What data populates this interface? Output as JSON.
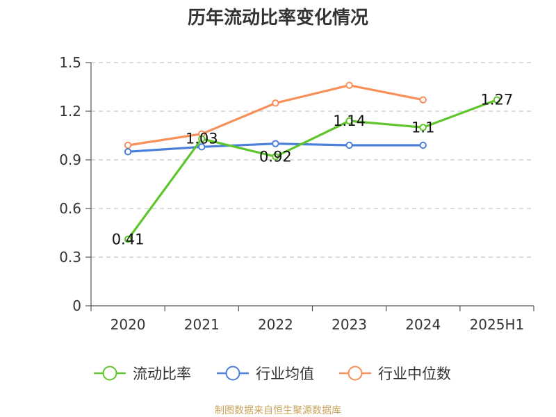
{
  "source_note": "制图数据来自恒生聚源数据库",
  "chart_data": {
    "type": "line",
    "title": "历年流动比率变化情况",
    "categories": [
      "2020",
      "2021",
      "2022",
      "2023",
      "2024",
      "2025H1"
    ],
    "ylim": [
      0,
      1.5
    ],
    "y_ticks": [
      "0",
      "0.3",
      "0.6",
      "0.9",
      "1.2",
      "1.5"
    ],
    "grid": true,
    "legend_position": "bottom",
    "series": [
      {
        "name": "流动比率",
        "color": "#5ec52a",
        "values": [
          0.41,
          1.03,
          0.92,
          1.14,
          1.1,
          1.27
        ],
        "data_labels": [
          "0.41",
          "1.03",
          "0.92",
          "1.14",
          "1.1",
          "1.27"
        ]
      },
      {
        "name": "行业均值",
        "color": "#4a7fdc",
        "values": [
          0.95,
          0.98,
          1.0,
          0.99,
          0.99,
          null
        ]
      },
      {
        "name": "行业中位数",
        "color": "#f79058",
        "values": [
          0.99,
          1.06,
          1.25,
          1.36,
          1.27,
          null
        ]
      }
    ]
  }
}
